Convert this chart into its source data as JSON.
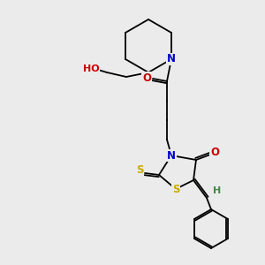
{
  "bg_color": "#ebebeb",
  "atom_colors": {
    "C": "#000000",
    "N": "#0000cc",
    "O": "#cc0000",
    "S": "#ccaa00",
    "H": "#448844"
  },
  "bond_color": "#000000",
  "lw": 1.3
}
